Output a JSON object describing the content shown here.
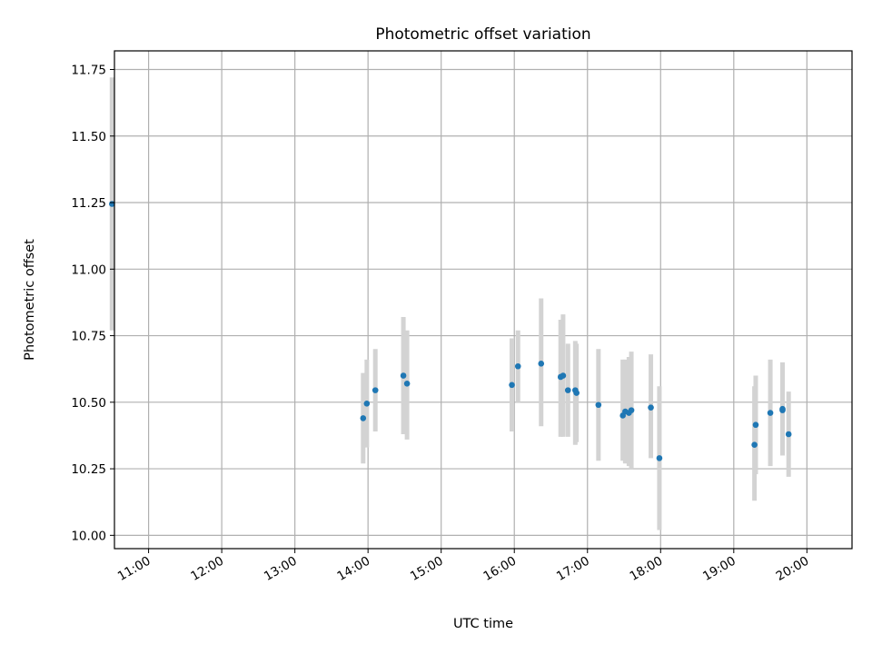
{
  "chart_data": {
    "type": "scatter",
    "title": "Photometric offset variation",
    "xlabel": "UTC time",
    "ylabel": "Photometric offset",
    "x_unit": "UTC time (HH:MM)",
    "xlim": [
      "10:32",
      "20:37"
    ],
    "ylim": [
      9.95,
      11.82
    ],
    "x_ticks": [
      "11:00",
      "12:00",
      "13:00",
      "14:00",
      "15:00",
      "16:00",
      "17:00",
      "18:00",
      "19:00",
      "20:00"
    ],
    "y_ticks": [
      "10.00",
      "10.25",
      "10.50",
      "10.75",
      "11.00",
      "11.25",
      "11.50",
      "11.75"
    ],
    "grid": true,
    "colors": {
      "point": "#1f77b4",
      "errorbar": "#d3d3d3",
      "grid": "#b0b0b0"
    },
    "points": [
      {
        "x": "10:30",
        "y": 11.245,
        "low": 10.77,
        "high": 11.72
      },
      {
        "x": "13:56",
        "y": 10.44,
        "low": 10.27,
        "high": 10.61
      },
      {
        "x": "13:59",
        "y": 10.495,
        "low": 10.33,
        "high": 10.66
      },
      {
        "x": "14:06",
        "y": 10.545,
        "low": 10.39,
        "high": 10.7
      },
      {
        "x": "14:29",
        "y": 10.6,
        "low": 10.38,
        "high": 10.82
      },
      {
        "x": "14:32",
        "y": 10.57,
        "low": 10.36,
        "high": 10.77
      },
      {
        "x": "15:58",
        "y": 10.565,
        "low": 10.39,
        "high": 10.74
      },
      {
        "x": "16:03",
        "y": 10.635,
        "low": 10.5,
        "high": 10.77
      },
      {
        "x": "16:22",
        "y": 10.645,
        "low": 10.41,
        "high": 10.89
      },
      {
        "x": "16:38",
        "y": 10.595,
        "low": 10.37,
        "high": 10.81
      },
      {
        "x": "16:40",
        "y": 10.6,
        "low": 10.37,
        "high": 10.83
      },
      {
        "x": "16:44",
        "y": 10.545,
        "low": 10.37,
        "high": 10.72
      },
      {
        "x": "16:50",
        "y": 10.545,
        "low": 10.34,
        "high": 10.73
      },
      {
        "x": "16:51",
        "y": 10.535,
        "low": 10.35,
        "high": 10.72
      },
      {
        "x": "17:09",
        "y": 10.49,
        "low": 10.28,
        "high": 10.7
      },
      {
        "x": "17:29",
        "y": 10.45,
        "low": 10.28,
        "high": 10.66
      },
      {
        "x": "17:31",
        "y": 10.465,
        "low": 10.27,
        "high": 10.66
      },
      {
        "x": "17:34",
        "y": 10.46,
        "low": 10.26,
        "high": 10.67
      },
      {
        "x": "17:36",
        "y": 10.47,
        "low": 10.25,
        "high": 10.69
      },
      {
        "x": "17:52",
        "y": 10.48,
        "low": 10.29,
        "high": 10.68
      },
      {
        "x": "17:59",
        "y": 10.29,
        "low": 10.02,
        "high": 10.56
      },
      {
        "x": "19:17",
        "y": 10.34,
        "low": 10.13,
        "high": 10.56
      },
      {
        "x": "19:18",
        "y": 10.415,
        "low": 10.23,
        "high": 10.6
      },
      {
        "x": "19:30",
        "y": 10.46,
        "low": 10.26,
        "high": 10.66
      },
      {
        "x": "19:40",
        "y": 10.47,
        "low": 10.3,
        "high": 10.65
      },
      {
        "x": "19:40",
        "y": 10.475,
        "low": 10.3,
        "high": 10.64
      },
      {
        "x": "19:45",
        "y": 10.38,
        "low": 10.22,
        "high": 10.54
      }
    ]
  }
}
